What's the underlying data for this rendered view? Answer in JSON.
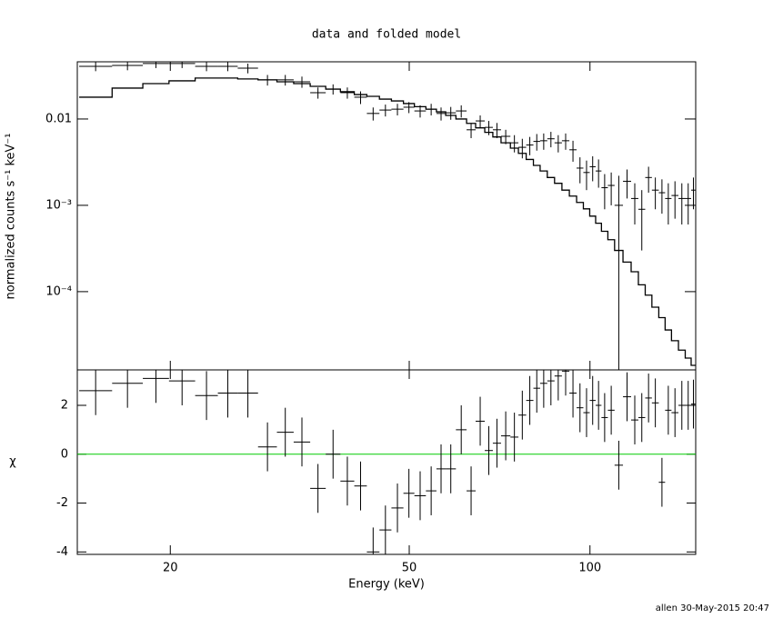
{
  "chart_data": [
    {
      "type": "errorbar",
      "title": "data and folded model",
      "ylabel": "normalized counts s⁻¹ keV⁻¹",
      "log_x": true,
      "log_y": true,
      "xlim": [
        14,
        150
      ],
      "ylim": [
        1.24e-05,
        0.046
      ],
      "yticks": [
        {
          "value": 0.0001,
          "label": "10⁻⁴"
        },
        {
          "value": 0.001,
          "label": "10⁻³"
        },
        0.01
      ],
      "bin_edges": [
        14.1,
        16.0,
        18.0,
        19.9,
        22.0,
        24.0,
        25.9,
        28.0,
        30.1,
        32.1,
        34.2,
        36.3,
        38.4,
        40.5,
        42.5,
        44.6,
        46.7,
        48.9,
        51.0,
        53.3,
        55.5,
        57.5,
        59.8,
        62.3,
        64.5,
        66.8,
        68.9,
        71.1,
        73.7,
        76.0,
        78.3,
        80.5,
        82.6,
        84.9,
        87.3,
        89.8,
        92.4,
        95.0,
        97.5,
        99.9,
        102.2,
        104.5,
        107.1,
        109.9,
        113.5,
        117.1,
        120.4,
        123.6,
        126.8,
        130.2,
        133.4,
        136.7,
        140.4,
        144.1,
        147.4,
        150
      ],
      "series": [
        {
          "kind": "data",
          "color": "#000000",
          "values": [
            0.0408,
            0.0417,
            0.0439,
            0.0439,
            0.0408,
            0.0408,
            0.0388,
            0.0284,
            0.0284,
            0.027,
            0.0202,
            0.0222,
            0.0202,
            0.0179,
            0.0116,
            0.0127,
            0.013,
            0.0137,
            0.0124,
            0.013,
            0.0116,
            0.0118,
            0.0124,
            0.0075,
            0.0095,
            0.008,
            0.0075,
            0.0063,
            0.0053,
            0.0047,
            0.005,
            0.0055,
            0.0056,
            0.0059,
            0.0053,
            0.0056,
            0.0044,
            0.0027,
            0.0024,
            0.0028,
            0.0025,
            0.0016,
            0.0017,
            0.001,
            0.0019,
            0.0012,
            0.0009,
            0.0021,
            0.0015,
            0.0014,
            0.0012,
            0.0013,
            0.0012,
            0.0012,
            0.0015
          ],
          "errors": [
            0.005,
            0.005,
            0.005,
            0.005,
            0.005,
            0.005,
            0.005,
            0.004,
            0.004,
            0.004,
            0.003,
            0.003,
            0.003,
            0.003,
            0.002,
            0.002,
            0.002,
            0.002,
            0.002,
            0.002,
            0.002,
            0.002,
            0.002,
            0.0015,
            0.0015,
            0.0015,
            0.0015,
            0.0012,
            0.0012,
            0.0012,
            0.0012,
            0.0012,
            0.0012,
            0.0012,
            0.0012,
            0.0012,
            0.0012,
            0.0009,
            0.0009,
            0.0009,
            0.0009,
            0.0007,
            0.0007,
            0.0012,
            0.0007,
            0.0006,
            0.0006,
            0.0007,
            0.0006,
            0.0006,
            0.0006,
            0.0006,
            0.0006,
            0.0006,
            0.0006
          ]
        },
        {
          "kind": "model",
          "color": "#000000",
          "values": [
            0.0179,
            0.0228,
            0.0257,
            0.0277,
            0.0298,
            0.0298,
            0.0291,
            0.0284,
            0.027,
            0.0257,
            0.0239,
            0.0222,
            0.0207,
            0.0192,
            0.0183,
            0.017,
            0.0162,
            0.0151,
            0.0139,
            0.013,
            0.0121,
            0.011,
            0.01,
            0.0089,
            0.0079,
            0.007,
            0.0062,
            0.0053,
            0.0046,
            0.004,
            0.0034,
            0.0029,
            0.0025,
            0.0021,
            0.0018,
            0.0015,
            0.00128,
            0.00108,
            0.00091,
            0.00075,
            0.00062,
            0.0005,
            0.0004,
            0.0003,
            0.00022,
            0.00017,
            0.00012,
            9.1e-05,
            6.6e-05,
            5e-05,
            3.6e-05,
            2.7e-05,
            2.1e-05,
            1.7e-05,
            1.4e-05
          ]
        }
      ]
    },
    {
      "type": "errorbar",
      "ylabel": "χ",
      "xlabel": "Energy (keV)",
      "xticks": [
        20,
        50,
        100
      ],
      "ylim": [
        -4.1,
        3.45
      ],
      "yticks": [
        -4,
        -2,
        0,
        2
      ],
      "reference_line": {
        "value": 0,
        "color": "#00cc00"
      },
      "series": [
        {
          "kind": "residuals",
          "color": "#000000",
          "values": [
            2.6,
            2.9,
            3.1,
            3.0,
            2.4,
            2.5,
            2.5,
            0.3,
            0.9,
            0.5,
            -1.4,
            0.0,
            -1.1,
            -1.3,
            -4.0,
            -3.1,
            -2.2,
            -1.6,
            -1.7,
            -1.5,
            -0.6,
            -0.6,
            1.0,
            -1.5,
            1.35,
            0.15,
            0.45,
            0.75,
            0.7,
            1.6,
            2.2,
            2.7,
            2.9,
            3.0,
            3.2,
            3.4,
            2.5,
            1.9,
            1.7,
            2.2,
            2.0,
            1.5,
            1.8,
            -0.45,
            2.35,
            1.4,
            1.5,
            2.3,
            2.1,
            -1.15,
            1.8,
            1.7,
            2.0,
            2.0,
            2.05
          ],
          "errors": [
            1,
            1,
            1,
            1,
            1,
            1,
            1,
            1,
            1,
            1,
            1,
            1,
            1,
            1,
            1,
            1,
            1,
            1,
            1,
            1,
            1,
            1,
            1,
            1,
            1,
            1,
            1,
            1,
            1,
            1,
            1,
            1,
            1,
            1,
            1,
            1,
            1,
            1,
            1,
            1,
            1,
            1,
            1,
            1,
            1,
            1,
            1,
            1,
            1,
            1,
            1,
            1,
            1,
            1,
            1
          ]
        }
      ]
    }
  ],
  "footer": "allen 30-May-2015 20:47"
}
